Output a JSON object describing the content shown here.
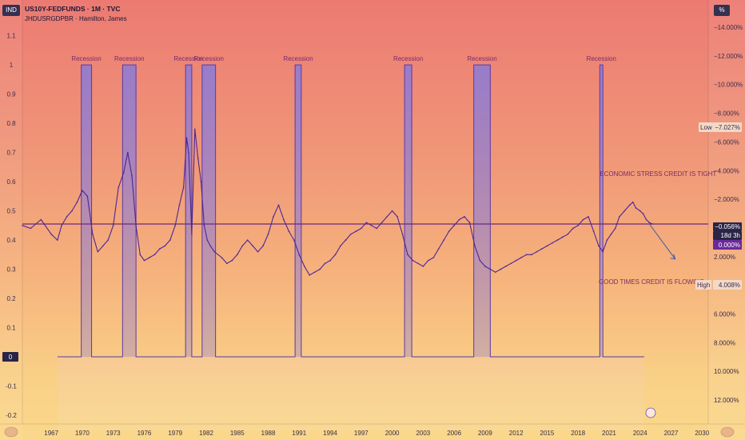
{
  "header": {
    "left_badge": "IND",
    "right_badge": "%",
    "title": "US10Y-FEDFUNDS · 1M · TVC",
    "subtitle": "JHDUSRGDPBR · Hamilton, James"
  },
  "colors": {
    "spread_line": "#4a2796",
    "recession_fill": "#8a7bd8",
    "recession_line": "#5a3aa8",
    "level_line": "#6a2a7a",
    "annotation_text": "#7a2a6a",
    "axis_text": "#3a2d4a",
    "badge_dark": "#2a2447"
  },
  "annotations": {
    "stress": "ECONOMIC STRESS CREDIT IS TIGHT",
    "good": "GOOD TIMES CREDIT IS FLOWING"
  },
  "right_labels": {
    "low_tag": "Low",
    "low_value": "−7.027%",
    "current_value": "−0.056%",
    "countdown": "18d 3h",
    "zero_value": "0.000%",
    "high_tag": "High",
    "high_value": "4.008%"
  },
  "left_zero_badge": "0",
  "chart_data": {
    "type": "line",
    "title": "US10Y-FEDFUNDS · 1M · TVC",
    "subtitle": "JHDUSRGDPBR · Hamilton, James",
    "x_axis": {
      "ticks": [
        "1967",
        "1970",
        "1973",
        "1976",
        "1979",
        "1982",
        "1985",
        "1988",
        "1991",
        "1994",
        "1997",
        "2000",
        "2003",
        "2006",
        "2009",
        "2012",
        "2015",
        "2018",
        "2021",
        "2024",
        "2027",
        "2030"
      ],
      "range": [
        1964.2,
        2030.6
      ]
    },
    "left_axis": {
      "ticks": [
        "1.1",
        "1",
        "0.9",
        "0.8",
        "0.7",
        "0.6",
        "0.5",
        "0.4",
        "0.3",
        "0.2",
        "0.1",
        "0",
        "-0.1",
        "-0.2"
      ],
      "range": [
        -0.23,
        1.14
      ]
    },
    "right_axis": {
      "ticks": [
        "−14.000%",
        "−12.000%",
        "−10.000%",
        "−8.000%",
        "−6.000%",
        "−4.000%",
        "−2.000%",
        "0.000%",
        "2.000%",
        "4.000%",
        "6.000%",
        "8.000%",
        "10.000%",
        "12.000%"
      ],
      "inverted": true
    },
    "level_line_value": 0.455,
    "recessions": [
      {
        "label": "Recession",
        "start": 1969.9,
        "end": 1970.9
      },
      {
        "label": "Recession",
        "start": 1973.9,
        "end": 1975.2
      },
      {
        "label": "Recession",
        "start": 1980.0,
        "end": 1980.6
      },
      {
        "label": "Recession",
        "start": 1981.6,
        "end": 1982.9
      },
      {
        "label": "Recession",
        "start": 1990.6,
        "end": 1991.2
      },
      {
        "label": "Recession",
        "start": 2001.2,
        "end": 2001.9
      },
      {
        "label": "Recession",
        "start": 2007.9,
        "end": 2009.5
      },
      {
        "label": "Recession",
        "start": 2020.1,
        "end": 2020.4
      }
    ],
    "recession_probability_baseline": 0,
    "recession_probability_peak": 1,
    "series": [
      {
        "name": "US10Y-FEDFUNDS",
        "x": [
          1964.2,
          1965.0,
          1966.0,
          1967.0,
          1967.6,
          1968.0,
          1968.5,
          1969.0,
          1969.5,
          1970.0,
          1970.5,
          1971.0,
          1971.5,
          1972.0,
          1972.5,
          1973.0,
          1973.5,
          1974.0,
          1974.4,
          1974.8,
          1975.2,
          1975.6,
          1976.0,
          1976.5,
          1977.0,
          1977.5,
          1978.0,
          1978.5,
          1979.0,
          1979.4,
          1979.8,
          1980.1,
          1980.3,
          1980.6,
          1980.9,
          1981.2,
          1981.5,
          1981.8,
          1982.1,
          1982.4,
          1982.8,
          1983.5,
          1984.0,
          1984.5,
          1985.0,
          1985.5,
          1986.0,
          1986.5,
          1987.0,
          1987.5,
          1988.0,
          1988.5,
          1989.0,
          1989.5,
          1990.0,
          1990.5,
          1991.0,
          1991.5,
          1992.0,
          1992.5,
          1993.0,
          1993.5,
          1994.0,
          1994.5,
          1995.0,
          1995.5,
          1996.0,
          1996.5,
          1997.0,
          1997.5,
          1998.0,
          1998.5,
          1999.0,
          1999.5,
          2000.0,
          2000.5,
          2001.0,
          2001.5,
          2002.0,
          2002.5,
          2003.0,
          2003.5,
          2004.0,
          2004.5,
          2005.0,
          2005.5,
          2006.0,
          2006.5,
          2007.0,
          2007.5,
          2008.0,
          2008.5,
          2009.0,
          2009.5,
          2010.0,
          2010.5,
          2011.0,
          2011.5,
          2012.0,
          2012.5,
          2013.0,
          2013.5,
          2014.0,
          2014.5,
          2015.0,
          2015.5,
          2016.0,
          2016.5,
          2017.0,
          2017.5,
          2018.0,
          2018.5,
          2019.0,
          2019.5,
          2020.0,
          2020.4,
          2020.8,
          2021.2,
          2021.6,
          2022.0,
          2022.5,
          2023.0,
          2023.3,
          2023.6,
          2024.0,
          2024.3,
          2024.6,
          2024.9,
          2025.2
        ],
        "values": [
          0.45,
          0.44,
          0.47,
          0.42,
          0.4,
          0.45,
          0.48,
          0.5,
          0.53,
          0.57,
          0.55,
          0.42,
          0.36,
          0.38,
          0.4,
          0.45,
          0.58,
          0.63,
          0.7,
          0.62,
          0.45,
          0.35,
          0.33,
          0.34,
          0.35,
          0.37,
          0.38,
          0.4,
          0.45,
          0.52,
          0.58,
          0.75,
          0.7,
          0.42,
          0.78,
          0.68,
          0.6,
          0.45,
          0.4,
          0.38,
          0.36,
          0.34,
          0.32,
          0.33,
          0.35,
          0.38,
          0.4,
          0.38,
          0.36,
          0.38,
          0.42,
          0.48,
          0.52,
          0.47,
          0.43,
          0.4,
          0.35,
          0.31,
          0.28,
          0.29,
          0.3,
          0.32,
          0.33,
          0.35,
          0.38,
          0.4,
          0.42,
          0.43,
          0.44,
          0.46,
          0.45,
          0.44,
          0.46,
          0.48,
          0.5,
          0.48,
          0.42,
          0.35,
          0.33,
          0.32,
          0.31,
          0.33,
          0.34,
          0.37,
          0.4,
          0.43,
          0.45,
          0.47,
          0.48,
          0.46,
          0.38,
          0.33,
          0.31,
          0.3,
          0.29,
          0.3,
          0.31,
          0.32,
          0.33,
          0.34,
          0.35,
          0.35,
          0.36,
          0.37,
          0.38,
          0.39,
          0.4,
          0.41,
          0.42,
          0.44,
          0.45,
          0.47,
          0.48,
          0.43,
          0.38,
          0.36,
          0.4,
          0.42,
          0.44,
          0.48,
          0.5,
          0.52,
          0.53,
          0.51,
          0.5,
          0.49,
          0.47,
          0.46,
          0.455
        ]
      },
      {
        "name": "JHDUSRGDPBR",
        "note": "recession indicator: 1 during recessions, 0 otherwise",
        "start": 1967.6,
        "end": 2024.4
      }
    ]
  }
}
